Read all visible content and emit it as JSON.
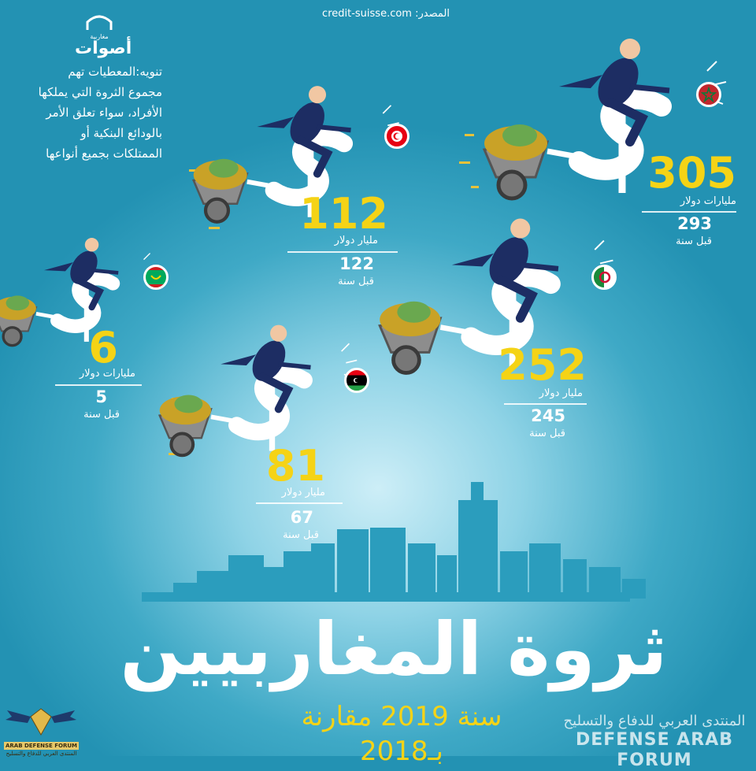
{
  "source": {
    "label": "المصدر:",
    "url": "credit-suisse.com"
  },
  "logo": {
    "text": "أصوات",
    "subtitle": "مغاربية"
  },
  "disclaimer": [
    "تنويه:المعطيات تهم",
    "مجموع الثروة التي يملكها",
    "الأفراد، سواء تعلق الأمر",
    "بالودائع البنكية أو",
    "الممتلكات بجميع أنواعها"
  ],
  "title": "ثروة المغاربيين",
  "subtitle": "سنة 2019 مقارنة بـ2018",
  "watermark": {
    "ar": "المنتدى العربي للدفاع والتسليح",
    "en": "DEFENSE ARAB FORUM",
    "small_en": "ARAB DEFENSE FORUM",
    "small_ar": "المنتدى العربي للدفاع والتسليح"
  },
  "colors": {
    "accent": "#f5d316",
    "background": "#2392b3",
    "figure": "#1d2d63",
    "dollar": "#ffffff"
  },
  "chart_data": {
    "type": "bar",
    "categories": [
      "Morocco",
      "Algeria",
      "Tunisia",
      "Libya",
      "Mauritania"
    ],
    "series": [
      {
        "values": [
          305,
          252,
          112,
          81,
          6
        ]
      },
      {
        "values": [
          293,
          245,
          122,
          67,
          5
        ]
      }
    ],
    "countries": [
      {
        "value": "305",
        "unit": "مليارات دولار",
        "prev": "293",
        "prev_label": "قبل سنة",
        "flag": "morocco"
      },
      {
        "value": "252",
        "unit": "مليار دولار",
        "prev": "245",
        "prev_label": "قبل سنة",
        "flag": "algeria"
      },
      {
        "value": "112",
        "unit": "مليار دولار",
        "prev": "122",
        "prev_label": "قبل سنة",
        "flag": "tunisia"
      },
      {
        "value": "81",
        "unit": "مليار دولار",
        "prev": "67",
        "prev_label": "قبل سنة",
        "flag": "libya"
      },
      {
        "value": "6",
        "unit": "مليارات دولار",
        "prev": "5",
        "prev_label": "قبل سنة",
        "flag": "mauritania"
      }
    ]
  }
}
